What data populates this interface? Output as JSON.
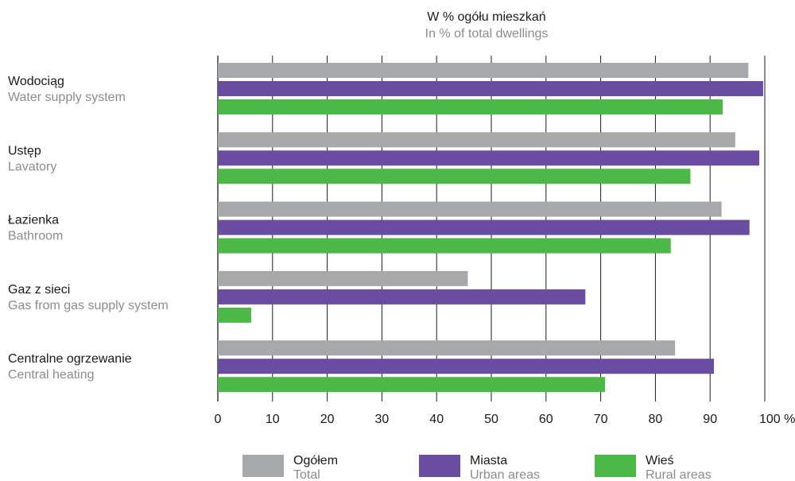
{
  "chart_data": {
    "type": "bar",
    "orientation": "horizontal",
    "title": "W % ogółu mieszkań",
    "subtitle": "In % of total dwellings",
    "categories": [
      {
        "pl": "Wodociąg",
        "en": "Water supply system"
      },
      {
        "pl": "Ustęp",
        "en": "Lavatory"
      },
      {
        "pl": "Łazienka",
        "en": "Bathroom"
      },
      {
        "pl": "Gaz z sieci",
        "en": "Gas from gas supply system"
      },
      {
        "pl": "Centralne ogrzewanie",
        "en": "Central heating"
      }
    ],
    "series": [
      {
        "name": "Ogółem",
        "name_en": "Total",
        "color": "#a7a8aa",
        "values": [
          97.0,
          94.6,
          92.1,
          45.7,
          83.6
        ]
      },
      {
        "name": "Miasta",
        "name_en": "Urban areas",
        "color": "#6a4da0",
        "values": [
          99.7,
          99.0,
          97.2,
          67.2,
          90.7
        ]
      },
      {
        "name": "Wieś",
        "name_en": "Rural areas",
        "color": "#4cb848",
        "values": [
          92.3,
          86.4,
          82.8,
          6.1,
          70.8
        ]
      }
    ],
    "xlim": [
      0,
      100
    ],
    "xticks": [
      0,
      10,
      20,
      30,
      40,
      50,
      60,
      70,
      80,
      90,
      100
    ],
    "xtick_labels": [
      "0",
      "10",
      "20",
      "30",
      "40",
      "50",
      "60",
      "70",
      "80",
      "90",
      "100 %"
    ],
    "grid": true,
    "legend_position": "bottom"
  }
}
